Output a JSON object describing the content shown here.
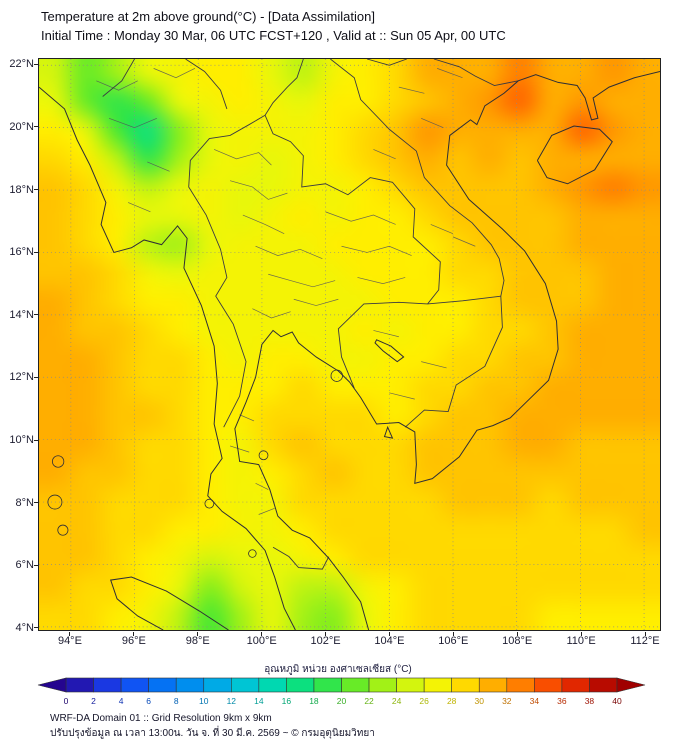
{
  "header": {
    "title": "Temperature at 2m above ground(°C) - [Data Assimilation]",
    "subtitle": "Initial Time : Monday 30 Mar, 06 UTC FCST+120 , Valid at :: Sun 05 Apr, 00 UTC"
  },
  "chart_data": {
    "type": "heatmap",
    "title": "Temperature at 2m above ground(°C) - [Data Assimilation]",
    "subtitle": "Initial Time : Monday 30 Mar, 06 UTC FCST+120 , Valid at :: Sun 05 Apr, 00 UTC",
    "units": "°C",
    "grid_on": true,
    "x_axis": {
      "label": "Longitude",
      "tick_suffix": "°E",
      "ticks": [
        94,
        96,
        98,
        100,
        102,
        104,
        106,
        108,
        110,
        112
      ],
      "range": [
        93.0,
        112.5
      ]
    },
    "y_axis": {
      "label": "Latitude",
      "tick_suffix": "°N",
      "ticks": [
        4,
        6,
        8,
        10,
        12,
        14,
        16,
        18,
        20,
        22
      ],
      "range": [
        3.9,
        22.2
      ]
    },
    "field": {
      "description": "2m temperature (°C) on a coarse 20x20 grid, rows from north (lat 22.2) to south (lat 3.9), cols from west (lon 93.0) to east (lon 112.5)",
      "ncols": 20,
      "nrows": 20,
      "lon_start": 93.0,
      "lon_end": 112.5,
      "lat_start": 22.2,
      "lat_end": 3.9,
      "values_c": [
        [
          25,
          21,
          23,
          26,
          27,
          28,
          28,
          26,
          24,
          27,
          28,
          29,
          31,
          31,
          31,
          33,
          31,
          31,
          32,
          31
        ],
        [
          26,
          21,
          19,
          21,
          26,
          27,
          28,
          27,
          26,
          28,
          28,
          29,
          30,
          31,
          32,
          34,
          31,
          32,
          31,
          31
        ],
        [
          28,
          26,
          20,
          17,
          22,
          26,
          27,
          27,
          27,
          28,
          29,
          30,
          32,
          31,
          31,
          31,
          31,
          34,
          32,
          31
        ],
        [
          29,
          28,
          24,
          19,
          23,
          26,
          27,
          26,
          27,
          28,
          29,
          30,
          31,
          30,
          31,
          30,
          31,
          31,
          31,
          31
        ],
        [
          30,
          29,
          27,
          24,
          26,
          27,
          26,
          26,
          27,
          27,
          28,
          29,
          30,
          30,
          30,
          30,
          31,
          32,
          33,
          32
        ],
        [
          30,
          29,
          28,
          26,
          26,
          27,
          26,
          27,
          28,
          27,
          28,
          28,
          29,
          30,
          30,
          30,
          30,
          31,
          31,
          31
        ],
        [
          30,
          29,
          28,
          24,
          23,
          26,
          27,
          27,
          27,
          28,
          28,
          28,
          28,
          29,
          30,
          30,
          30,
          31,
          31,
          31
        ],
        [
          30,
          30,
          29,
          27,
          26,
          27,
          27,
          27,
          27,
          27,
          28,
          28,
          28,
          29,
          29,
          30,
          30,
          30,
          31,
          31
        ],
        [
          31,
          30,
          29,
          28,
          28,
          27,
          27,
          27,
          27,
          27,
          27,
          28,
          28,
          28,
          29,
          30,
          30,
          30,
          31,
          31
        ],
        [
          31,
          30,
          30,
          29,
          28,
          27,
          27,
          27,
          27,
          27,
          28,
          27,
          28,
          28,
          29,
          29,
          30,
          31,
          31,
          31
        ],
        [
          31,
          31,
          30,
          29,
          29,
          28,
          27,
          28,
          28,
          27,
          27,
          28,
          28,
          29,
          29,
          30,
          30,
          31,
          31,
          31
        ],
        [
          31,
          31,
          30,
          29,
          29,
          28,
          28,
          28,
          29,
          28,
          28,
          28,
          29,
          29,
          30,
          30,
          31,
          31,
          31,
          31
        ],
        [
          31,
          31,
          30,
          30,
          29,
          28,
          28,
          29,
          29,
          29,
          29,
          28,
          29,
          30,
          30,
          31,
          31,
          31,
          31,
          31
        ],
        [
          31,
          31,
          30,
          29,
          29,
          28,
          27,
          29,
          30,
          29,
          29,
          29,
          30,
          30,
          30,
          31,
          31,
          30,
          30,
          30
        ],
        [
          31,
          30,
          30,
          29,
          29,
          28,
          27,
          28,
          29,
          30,
          29,
          29,
          30,
          30,
          30,
          30,
          30,
          30,
          30,
          30
        ],
        [
          30,
          30,
          29,
          29,
          29,
          28,
          27,
          27,
          29,
          29,
          29,
          29,
          29,
          30,
          30,
          30,
          29,
          30,
          30,
          30
        ],
        [
          30,
          30,
          29,
          29,
          28,
          28,
          27,
          27,
          28,
          29,
          29,
          29,
          29,
          29,
          29,
          29,
          29,
          29,
          29,
          30
        ],
        [
          30,
          30,
          29,
          28,
          27,
          25,
          26,
          26,
          27,
          28,
          29,
          29,
          29,
          29,
          29,
          29,
          29,
          29,
          29,
          29
        ],
        [
          30,
          29,
          29,
          28,
          26,
          22,
          25,
          26,
          24,
          24,
          27,
          28,
          29,
          29,
          29,
          29,
          29,
          29,
          29,
          29
        ],
        [
          29,
          29,
          28,
          27,
          24,
          20,
          23,
          26,
          23,
          22,
          26,
          28,
          29,
          29,
          29,
          29,
          28,
          28,
          28,
          28
        ]
      ]
    },
    "colorbar": {
      "label": "อุณหภูมิ หน่วย องศาเซลเซียส (°C)",
      "min": 0,
      "max": 40,
      "ticks": [
        0,
        2,
        4,
        6,
        8,
        10,
        12,
        14,
        16,
        18,
        20,
        22,
        24,
        26,
        28,
        30,
        32,
        34,
        36,
        38,
        40
      ],
      "stops": [
        [
          0,
          "#25058f"
        ],
        [
          2,
          "#1f2ad4"
        ],
        [
          4,
          "#1545f0"
        ],
        [
          6,
          "#0a63f5"
        ],
        [
          8,
          "#0080f0"
        ],
        [
          10,
          "#009cec"
        ],
        [
          12,
          "#00b8e0"
        ],
        [
          14,
          "#00d2c8"
        ],
        [
          16,
          "#00dd9a"
        ],
        [
          18,
          "#17e263"
        ],
        [
          20,
          "#4ae832"
        ],
        [
          22,
          "#86ee1c"
        ],
        [
          24,
          "#bdf312"
        ],
        [
          26,
          "#e8f70a"
        ],
        [
          28,
          "#ffee00"
        ],
        [
          30,
          "#ffc400"
        ],
        [
          32,
          "#ff9700"
        ],
        [
          34,
          "#ff6400"
        ],
        [
          36,
          "#f23800"
        ],
        [
          38,
          "#d01500"
        ],
        [
          40,
          "#a00000"
        ]
      ]
    }
  },
  "footer": {
    "line1": "WRF-DA Domain 01 :: Grid Resolution 9km x 9km",
    "line2": "ปรับปรุงข้อมูล ณ เวลา 13:00น. วัน จ. ที่ 30 มี.ค. 2569 ~ © กรมอุตุนิยมวิทยา"
  }
}
